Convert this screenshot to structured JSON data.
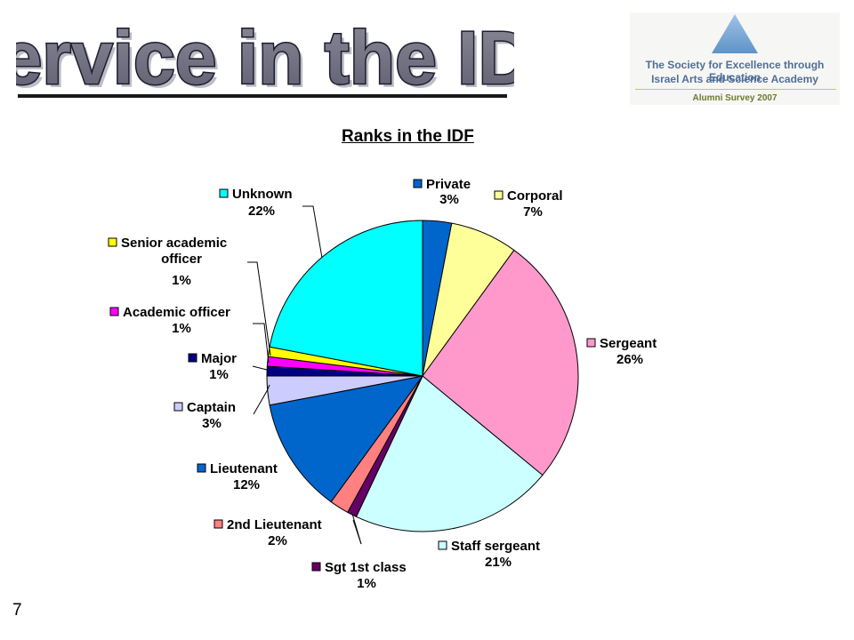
{
  "slide": {
    "title": "Service in the IDF",
    "page_number": "7"
  },
  "logo": {
    "line1": "The Society for Excellence through Education",
    "line2": "Israel Arts and Science Academy",
    "line3": "Alumni Survey 2007"
  },
  "chart_data": {
    "type": "pie",
    "title": "Ranks in the IDF",
    "slices": [
      {
        "name": "Private",
        "value": 3,
        "label": "3%",
        "color": "#0066cc"
      },
      {
        "name": "Corporal",
        "value": 7,
        "label": "7%",
        "color": "#ffff99"
      },
      {
        "name": "Sergeant",
        "value": 26,
        "label": "26%",
        "color": "#ff99cc"
      },
      {
        "name": "Staff sergeant",
        "value": 21,
        "label": "21%",
        "color": "#ccffff"
      },
      {
        "name": "Sgt 1st class",
        "value": 1,
        "label": "1%",
        "color": "#660066"
      },
      {
        "name": "2nd Lieutenant",
        "value": 2,
        "label": "2%",
        "color": "#ff8080"
      },
      {
        "name": "Lieutenant",
        "value": 12,
        "label": "12%",
        "color": "#0066cc"
      },
      {
        "name": "Captain",
        "value": 3,
        "label": "3%",
        "color": "#ccccff"
      },
      {
        "name": "Major",
        "value": 1,
        "label": "1%",
        "color": "#000080"
      },
      {
        "name": "Academic officer",
        "value": 1,
        "label": "1%",
        "color": "#ff00ff"
      },
      {
        "name": "Senior academic officer",
        "value": 1,
        "label": "1%",
        "color": "#ffff00"
      },
      {
        "name": "Unknown",
        "value": 22,
        "label": "22%",
        "color": "#00ffff"
      }
    ]
  }
}
